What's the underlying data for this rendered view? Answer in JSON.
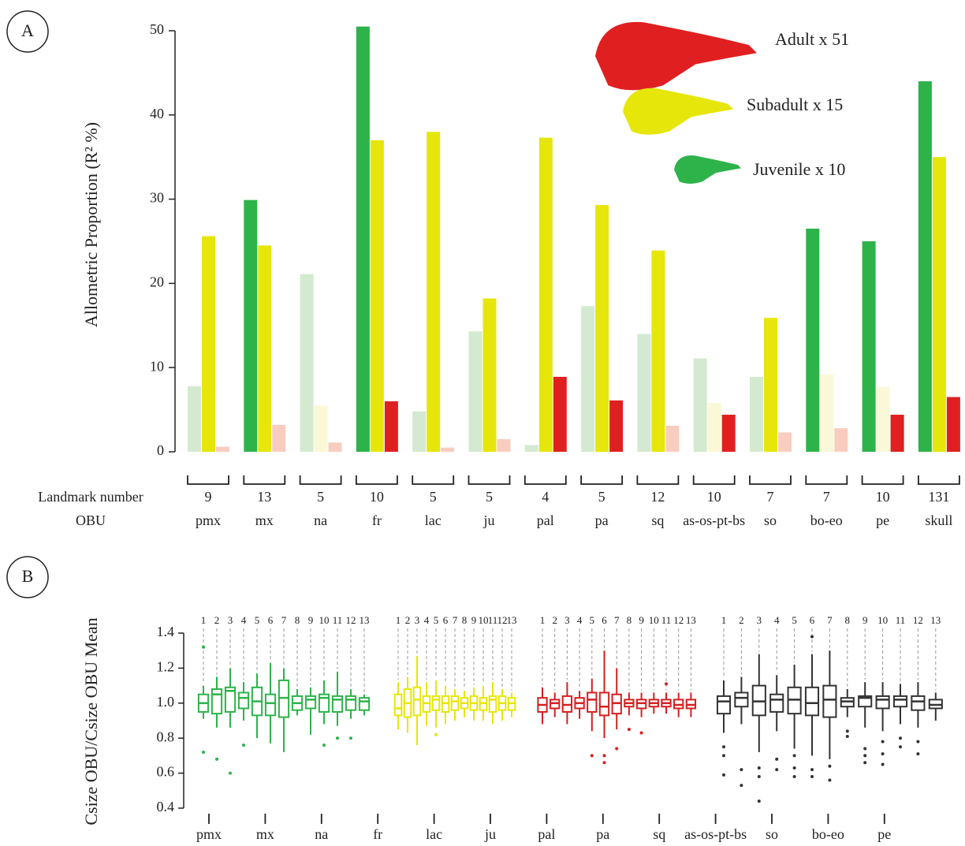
{
  "chart_data": [
    {
      "type": "bar",
      "panel": "A",
      "ylabel": "Allometric Proportion (R² %)",
      "ylim": [
        0,
        50
      ],
      "yticks": [
        0,
        10,
        20,
        30,
        40,
        50
      ],
      "row_labels": [
        "Landmark number",
        "OBU"
      ],
      "landmark_numbers": [
        9,
        13,
        5,
        10,
        5,
        5,
        4,
        5,
        12,
        10,
        7,
        7,
        10,
        131
      ],
      "categories": [
        "pmx",
        "mx",
        "na",
        "fr",
        "lac",
        "ju",
        "pal",
        "pa",
        "sq",
        "as-os-pt-bs",
        "so",
        "bo-eo",
        "pe",
        "skull"
      ],
      "series": [
        {
          "name": "Juvenile x 10",
          "color": "#2db34a",
          "colors": [
            "#d4ead0",
            "#2db34a",
            "#d4ead0",
            "#2db34a",
            "#d4ead0",
            "#d4ead0",
            "#d4ead0",
            "#d4ead0",
            "#d4ead0",
            "#d4ead0",
            "#d4ead0",
            "#2db34a",
            "#2db34a",
            "#2db34a"
          ],
          "values": [
            7.8,
            29.9,
            21.1,
            50.5,
            4.8,
            14.3,
            0.8,
            17.3,
            14.0,
            11.1,
            8.9,
            26.5,
            25.0,
            44.0
          ]
        },
        {
          "name": "Subadult x 15",
          "color": "#e6e60a",
          "colors": [
            "#e6e60a",
            "#e6e60a",
            "#fbf8d8",
            "#e6e60a",
            "#e6e60a",
            "#e6e60a",
            "#e6e60a",
            "#e6e60a",
            "#e6e60a",
            "#fbf8d8",
            "#e6e60a",
            "#fbf8d8",
            "#fbf8d8",
            "#e6e60a"
          ],
          "values": [
            25.6,
            24.5,
            5.5,
            37.0,
            38.0,
            18.2,
            37.3,
            29.3,
            23.9,
            5.8,
            15.9,
            9.2,
            7.7,
            35.0
          ]
        },
        {
          "name": "Adult x 51",
          "color": "#e02020",
          "colors": [
            "#f8cdbf",
            "#f8cdbf",
            "#f8cdbf",
            "#e02020",
            "#f8cdbf",
            "#f8cdbf",
            "#e02020",
            "#e02020",
            "#f8cdbf",
            "#e02020",
            "#f8cdbf",
            "#f8cdbf",
            "#e02020",
            "#e02020"
          ],
          "values": [
            0.6,
            3.2,
            1.1,
            6.0,
            0.5,
            1.5,
            8.9,
            6.1,
            3.1,
            4.4,
            2.3,
            2.8,
            4.4,
            6.5
          ]
        }
      ]
    },
    {
      "type": "box",
      "panel": "B",
      "ylabel": "Csize OBU/Csize OBU Mean",
      "ylim": [
        0.4,
        1.4
      ],
      "yticks": [
        0.4,
        0.6,
        0.8,
        {
          "value": 1,
          "label": "1.0"
        },
        1.2,
        1.4
      ],
      "box_labels": [
        1,
        2,
        3,
        4,
        5,
        6,
        7,
        8,
        9,
        10,
        11,
        12,
        13
      ],
      "categories": [
        "pmx",
        "mx",
        "na",
        "fr",
        "lac",
        "ju",
        "pal",
        "pa",
        "sq",
        "as-os-pt-bs",
        "so",
        "bo-eo",
        "pe"
      ],
      "series": [
        {
          "color": "#2db34a",
          "boxes": [
            {
              "whislo": 0.91,
              "q1": 0.95,
              "med": 1.0,
              "q3": 1.05,
              "whishi": 1.1,
              "fliers": [
                1.32,
                0.72
              ]
            },
            {
              "whislo": 0.86,
              "q1": 0.94,
              "med": 1.05,
              "q3": 1.08,
              "whishi": 1.15,
              "fliers": [
                0.68
              ]
            },
            {
              "whislo": 0.86,
              "q1": 0.95,
              "med": 1.07,
              "q3": 1.09,
              "whishi": 1.2,
              "fliers": [
                0.6
              ]
            },
            {
              "whislo": 0.9,
              "q1": 0.97,
              "med": 1.03,
              "q3": 1.06,
              "whishi": 1.12,
              "fliers": [
                0.76
              ]
            },
            {
              "whislo": 0.8,
              "q1": 0.93,
              "med": 1.01,
              "q3": 1.09,
              "whishi": 1.17,
              "fliers": []
            },
            {
              "whislo": 0.77,
              "q1": 0.93,
              "med": 1.0,
              "q3": 1.05,
              "whishi": 1.23,
              "fliers": []
            },
            {
              "whislo": 0.72,
              "q1": 0.92,
              "med": 1.03,
              "q3": 1.13,
              "whishi": 1.2,
              "fliers": []
            },
            {
              "whislo": 0.93,
              "q1": 0.96,
              "med": 1.0,
              "q3": 1.04,
              "whishi": 1.08,
              "fliers": []
            },
            {
              "whislo": 0.82,
              "q1": 0.97,
              "med": 1.02,
              "q3": 1.04,
              "whishi": 1.09,
              "fliers": []
            },
            {
              "whislo": 0.88,
              "q1": 0.95,
              "med": 1.03,
              "q3": 1.05,
              "whishi": 1.13,
              "fliers": [
                0.76
              ]
            },
            {
              "whislo": 0.87,
              "q1": 0.95,
              "med": 1.02,
              "q3": 1.04,
              "whishi": 1.18,
              "fliers": [
                0.8
              ]
            },
            {
              "whislo": 0.91,
              "q1": 0.96,
              "med": 1.02,
              "q3": 1.04,
              "whishi": 1.08,
              "fliers": [
                0.8
              ]
            },
            {
              "whislo": 0.93,
              "q1": 0.96,
              "med": 1.01,
              "q3": 1.03,
              "whishi": 1.05,
              "fliers": []
            }
          ]
        },
        {
          "color": "#e6e60a",
          "boxes": [
            {
              "whislo": 0.85,
              "q1": 0.93,
              "med": 0.97,
              "q3": 1.05,
              "whishi": 1.12,
              "fliers": []
            },
            {
              "whislo": 0.83,
              "q1": 0.92,
              "med": 1.0,
              "q3": 1.08,
              "whishi": 1.15,
              "fliers": []
            },
            {
              "whislo": 0.76,
              "q1": 0.93,
              "med": 1.02,
              "q3": 1.09,
              "whishi": 1.27,
              "fliers": []
            },
            {
              "whislo": 0.87,
              "q1": 0.95,
              "med": 1.0,
              "q3": 1.04,
              "whishi": 1.12,
              "fliers": []
            },
            {
              "whislo": 0.86,
              "q1": 0.96,
              "med": 1.02,
              "q3": 1.04,
              "whishi": 1.13,
              "fliers": [
                0.82
              ]
            },
            {
              "whislo": 0.88,
              "q1": 0.95,
              "med": 1.0,
              "q3": 1.04,
              "whishi": 1.1,
              "fliers": []
            },
            {
              "whislo": 0.9,
              "q1": 0.96,
              "med": 1.01,
              "q3": 1.04,
              "whishi": 1.08,
              "fliers": []
            },
            {
              "whislo": 0.92,
              "q1": 0.97,
              "med": 1.0,
              "q3": 1.03,
              "whishi": 1.07,
              "fliers": []
            },
            {
              "whislo": 0.9,
              "q1": 0.96,
              "med": 1.0,
              "q3": 1.04,
              "whishi": 1.09,
              "fliers": []
            },
            {
              "whislo": 0.9,
              "q1": 0.96,
              "med": 1.0,
              "q3": 1.03,
              "whishi": 1.1,
              "fliers": []
            },
            {
              "whislo": 0.88,
              "q1": 0.95,
              "med": 1.02,
              "q3": 1.04,
              "whishi": 1.12,
              "fliers": []
            },
            {
              "whislo": 0.9,
              "q1": 0.96,
              "med": 1.0,
              "q3": 1.04,
              "whishi": 1.08,
              "fliers": []
            },
            {
              "whislo": 0.92,
              "q1": 0.96,
              "med": 1.0,
              "q3": 1.03,
              "whishi": 1.06,
              "fliers": []
            }
          ]
        },
        {
          "color": "#d42020",
          "boxes": [
            {
              "whislo": 0.88,
              "q1": 0.95,
              "med": 0.99,
              "q3": 1.03,
              "whishi": 1.09,
              "fliers": []
            },
            {
              "whislo": 0.92,
              "q1": 0.97,
              "med": 1.0,
              "q3": 1.02,
              "whishi": 1.06,
              "fliers": []
            },
            {
              "whislo": 0.88,
              "q1": 0.95,
              "med": 0.99,
              "q3": 1.04,
              "whishi": 1.12,
              "fliers": []
            },
            {
              "whislo": 0.91,
              "q1": 0.97,
              "med": 1.0,
              "q3": 1.03,
              "whishi": 1.07,
              "fliers": []
            },
            {
              "whislo": 0.84,
              "q1": 0.95,
              "med": 1.02,
              "q3": 1.06,
              "whishi": 1.14,
              "fliers": [
                0.7
              ]
            },
            {
              "whislo": 0.8,
              "q1": 0.93,
              "med": 0.98,
              "q3": 1.06,
              "whishi": 1.3,
              "fliers": [
                0.7,
                0.66
              ]
            },
            {
              "whislo": 0.85,
              "q1": 0.94,
              "med": 1.0,
              "q3": 1.05,
              "whishi": 1.2,
              "fliers": [
                0.74
              ]
            },
            {
              "whislo": 0.93,
              "q1": 0.98,
              "med": 1.0,
              "q3": 1.02,
              "whishi": 1.06,
              "fliers": [
                0.85
              ]
            },
            {
              "whislo": 0.92,
              "q1": 0.97,
              "med": 1.0,
              "q3": 1.02,
              "whishi": 1.06,
              "fliers": [
                0.83
              ]
            },
            {
              "whislo": 0.94,
              "q1": 0.98,
              "med": 1.0,
              "q3": 1.02,
              "whishi": 1.06,
              "fliers": []
            },
            {
              "whislo": 0.94,
              "q1": 0.98,
              "med": 1.0,
              "q3": 1.02,
              "whishi": 1.06,
              "fliers": [
                1.11
              ]
            },
            {
              "whislo": 0.92,
              "q1": 0.97,
              "med": 0.99,
              "q3": 1.02,
              "whishi": 1.06,
              "fliers": []
            },
            {
              "whislo": 0.92,
              "q1": 0.97,
              "med": 0.99,
              "q3": 1.02,
              "whishi": 1.06,
              "fliers": []
            }
          ]
        },
        {
          "color": "#333333",
          "boxes": [
            {
              "whislo": 0.83,
              "q1": 0.94,
              "med": 1.01,
              "q3": 1.04,
              "whishi": 1.13,
              "fliers": [
                0.75,
                0.7,
                0.59
              ]
            },
            {
              "whislo": 0.88,
              "q1": 0.98,
              "med": 1.03,
              "q3": 1.06,
              "whishi": 1.15,
              "fliers": [
                0.62,
                0.53
              ]
            },
            {
              "whislo": 0.72,
              "q1": 0.93,
              "med": 1.01,
              "q3": 1.1,
              "whishi": 1.28,
              "fliers": [
                0.63,
                0.58,
                0.44
              ]
            },
            {
              "whislo": 0.84,
              "q1": 0.95,
              "med": 1.02,
              "q3": 1.05,
              "whishi": 1.16,
              "fliers": [
                0.68,
                0.62
              ]
            },
            {
              "whislo": 0.74,
              "q1": 0.94,
              "med": 1.02,
              "q3": 1.09,
              "whishi": 1.22,
              "fliers": [
                0.7,
                0.63,
                0.58
              ]
            },
            {
              "whislo": 0.7,
              "q1": 0.93,
              "med": 1.0,
              "q3": 1.09,
              "whishi": 1.28,
              "fliers": [
                0.62,
                0.58,
                1.38
              ]
            },
            {
              "whislo": 0.68,
              "q1": 0.92,
              "med": 1.02,
              "q3": 1.1,
              "whishi": 1.3,
              "fliers": [
                0.64,
                0.56
              ]
            },
            {
              "whislo": 0.92,
              "q1": 0.98,
              "med": 1.01,
              "q3": 1.03,
              "whishi": 1.08,
              "fliers": [
                0.84,
                0.81
              ]
            },
            {
              "whislo": 0.86,
              "q1": 0.98,
              "med": 1.03,
              "q3": 1.04,
              "whishi": 1.12,
              "fliers": [
                0.74,
                0.7,
                0.66
              ]
            },
            {
              "whislo": 0.84,
              "q1": 0.97,
              "med": 1.02,
              "q3": 1.04,
              "whishi": 1.12,
              "fliers": [
                0.78,
                0.71,
                0.65
              ]
            },
            {
              "whislo": 0.88,
              "q1": 0.98,
              "med": 1.02,
              "q3": 1.04,
              "whishi": 1.11,
              "fliers": [
                0.8,
                0.75
              ]
            },
            {
              "whislo": 0.86,
              "q1": 0.96,
              "med": 1.01,
              "q3": 1.04,
              "whishi": 1.12,
              "fliers": [
                0.78,
                0.71
              ]
            },
            {
              "whislo": 0.9,
              "q1": 0.97,
              "med": 0.99,
              "q3": 1.02,
              "whishi": 1.06,
              "fliers": []
            }
          ]
        }
      ]
    }
  ]
}
